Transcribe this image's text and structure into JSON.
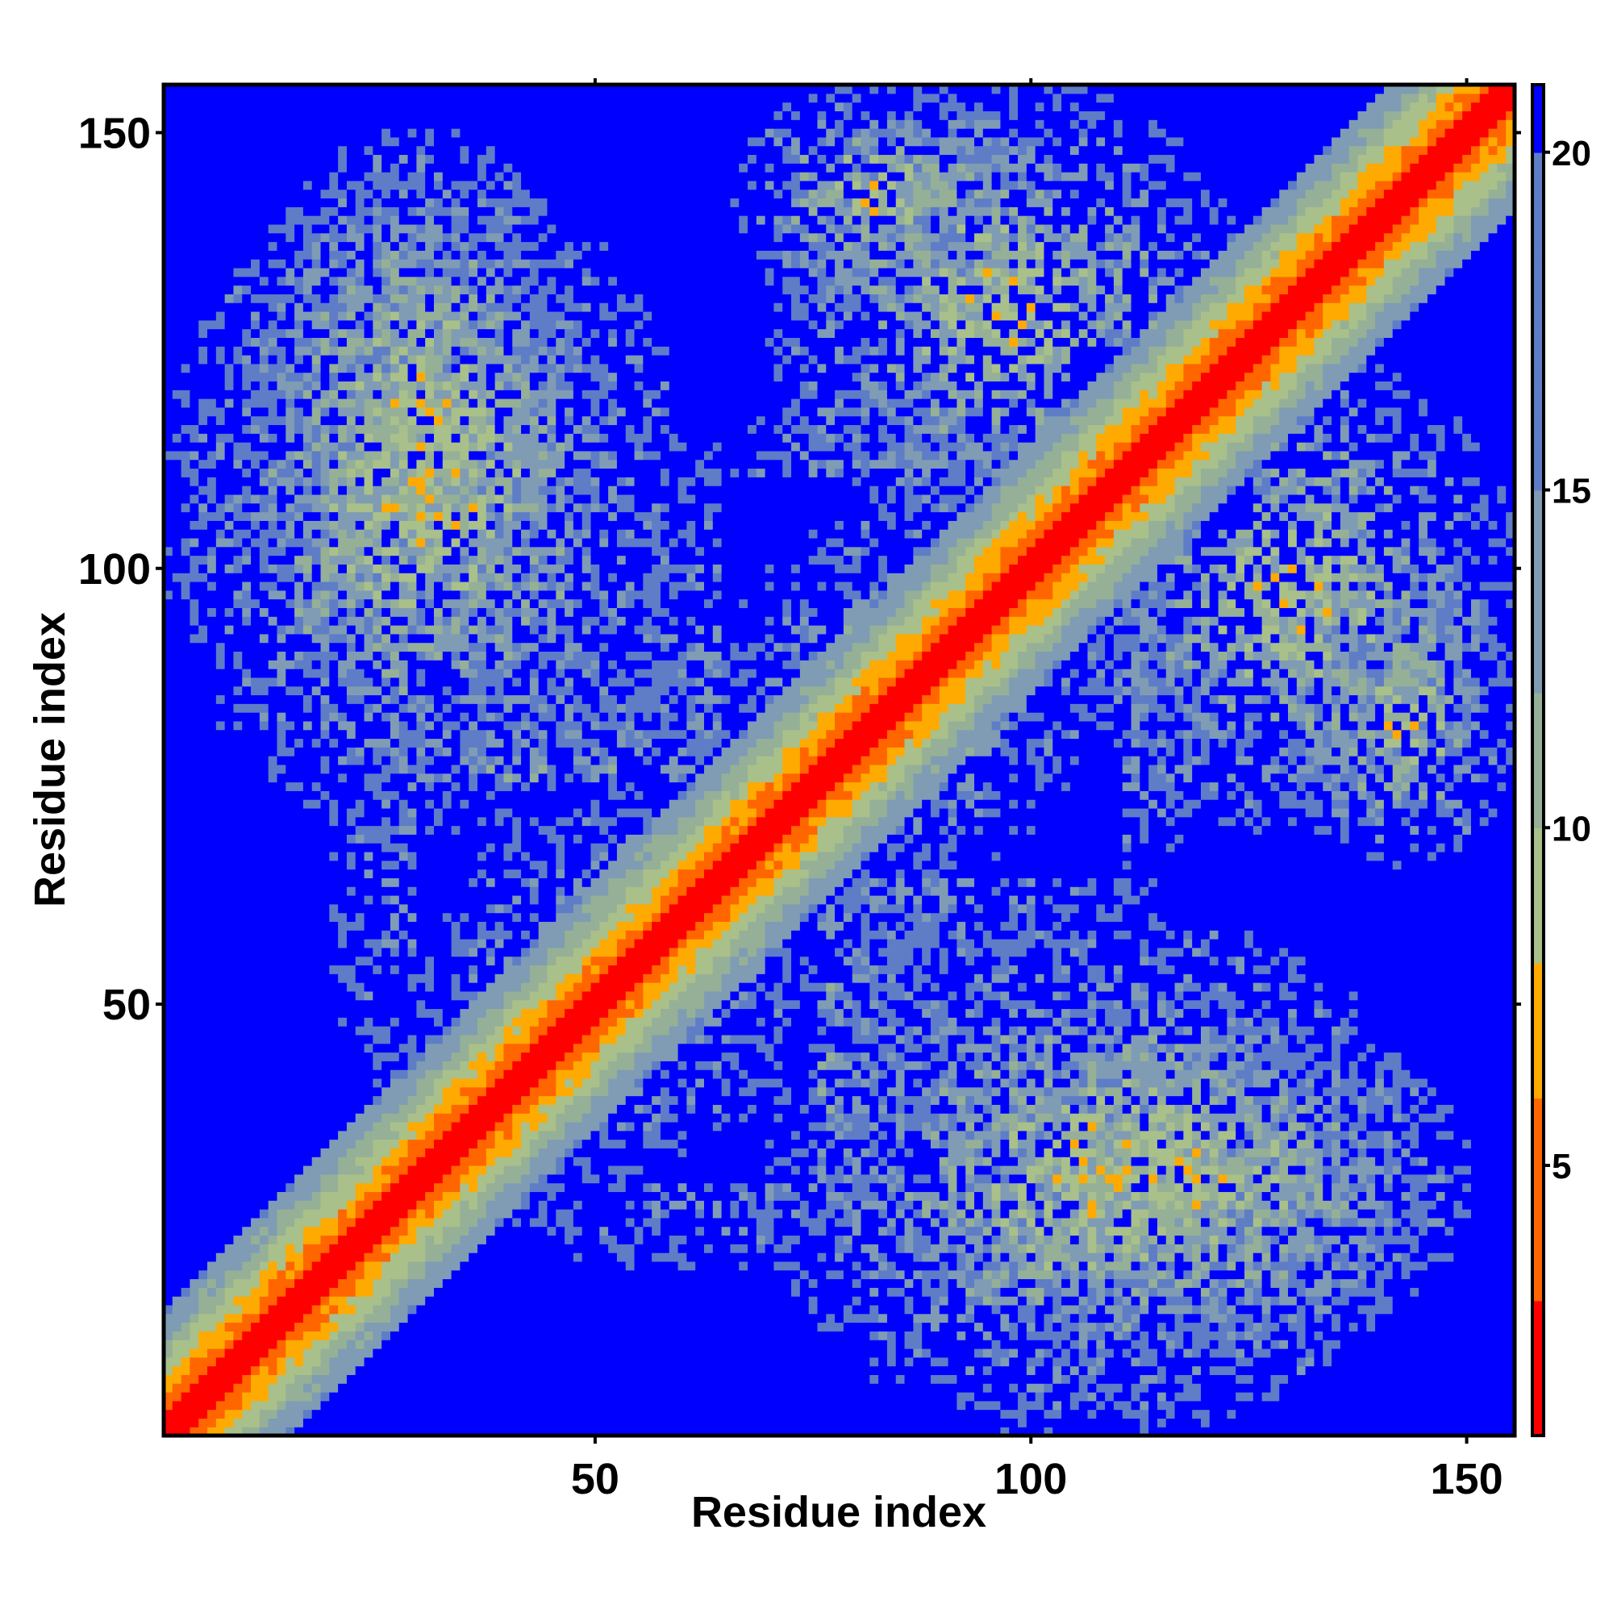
{
  "chart_data": {
    "type": "heatmap",
    "title": "",
    "xlabel": "Residue index",
    "ylabel": "Residue index",
    "xlim": [
      1,
      155
    ],
    "ylim": [
      1,
      155
    ],
    "x_ticks": [
      50,
      100,
      150
    ],
    "y_ticks": [
      50,
      100,
      150
    ],
    "x_tick_labels": [
      "50",
      "100",
      "150"
    ],
    "y_tick_labels": [
      "50",
      "100",
      "150"
    ],
    "colorbar": {
      "range": [
        1,
        21
      ],
      "ticks": [
        5,
        10,
        15,
        20
      ],
      "tick_labels": [
        "5",
        "10",
        "15",
        "20"
      ],
      "colors": [
        {
          "max": 3,
          "color": "#ff0000"
        },
        {
          "max": 6,
          "color": "#ff6600"
        },
        {
          "max": 8,
          "color": "#ffaa00"
        },
        {
          "max": 10,
          "color": "#a9c08a"
        },
        {
          "max": 12,
          "color": "#95b096"
        },
        {
          "max": 15,
          "color": "#7f9cb4"
        },
        {
          "max": 20,
          "color": "#5e7dc6"
        },
        {
          "max": 99,
          "color": "#0000ff"
        }
      ],
      "placement": "right"
    },
    "matrix": {
      "n": 155,
      "symmetric": true,
      "description": "pairwise residue distance map",
      "diagonal_band_halfwidth": 14,
      "contact_regions": [
        {
          "x": [
            1,
            60
          ],
          "y": [
            70,
            145
          ]
        },
        {
          "x": [
            30,
            90
          ],
          "y": [
            20,
            75
          ]
        },
        {
          "x": [
            85,
            150
          ],
          "y": [
            10,
            50
          ]
        },
        {
          "x": [
            65,
            100
          ],
          "y": [
            130,
            155
          ]
        },
        {
          "x": [
            105,
            155
          ],
          "y": [
            70,
            125
          ]
        },
        {
          "x": [
            65,
            120
          ],
          "y": [
            55,
            110
          ]
        }
      ]
    }
  }
}
